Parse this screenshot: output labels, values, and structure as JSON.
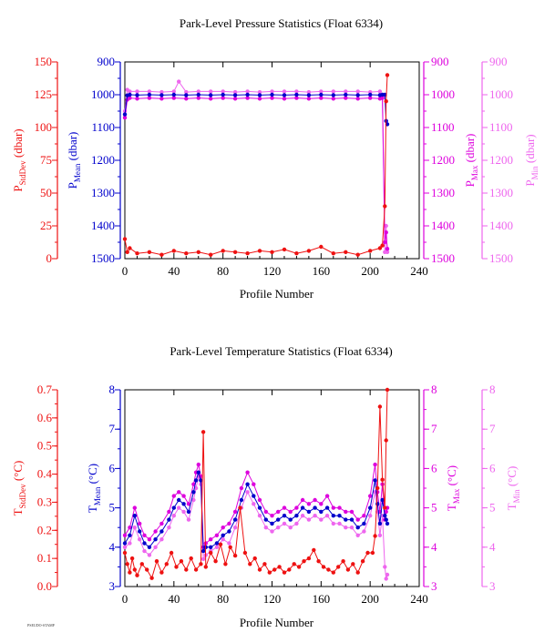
{
  "footer": {
    "stamp": "PSEUDO-STAMP"
  },
  "chart_data": [
    {
      "type": "line",
      "title": "Park-Level Pressure Statistics (Float 6334)",
      "xlabel": "Profile Number",
      "xlim": [
        0,
        240
      ],
      "xticks": [
        0,
        40,
        80,
        120,
        160,
        200,
        240
      ],
      "grid": false,
      "axes": [
        {
          "id": "stddev",
          "label": "P",
          "sub": "StdDev",
          "unit": " (dbar)",
          "color": "#ee1111",
          "range": [
            0,
            150
          ],
          "ticks": [
            0,
            25,
            50,
            75,
            100,
            125,
            150
          ],
          "inverted": false
        },
        {
          "id": "mean",
          "label": "P",
          "sub": "Mean",
          "unit": " (dbar)",
          "color": "#0000cc",
          "range": [
            900,
            1500
          ],
          "ticks": [
            900,
            1000,
            1100,
            1200,
            1300,
            1400,
            1500
          ],
          "inverted": true
        },
        {
          "id": "max",
          "label": "P",
          "sub": "Max",
          "unit": " (dbar)",
          "color": "#dd00dd",
          "range": [
            900,
            1500
          ],
          "ticks": [
            900,
            1000,
            1100,
            1200,
            1300,
            1400,
            1500
          ],
          "inverted": true
        },
        {
          "id": "min",
          "label": "P",
          "sub": "Min",
          "unit": " (dbar)",
          "color": "#ee66ee",
          "range": [
            900,
            1500
          ],
          "ticks": [
            900,
            1000,
            1100,
            1200,
            1300,
            1400,
            1500
          ],
          "inverted": true
        }
      ],
      "series": [
        {
          "axis": "min",
          "x": [
            0,
            2,
            4,
            10,
            20,
            30,
            40,
            44,
            50,
            60,
            70,
            80,
            90,
            100,
            110,
            120,
            130,
            140,
            150,
            160,
            170,
            180,
            190,
            200,
            208,
            210,
            212,
            213,
            214
          ],
          "y": [
            1050,
            985,
            990,
            990,
            990,
            992,
            990,
            960,
            992,
            990,
            990,
            990,
            992,
            990,
            992,
            990,
            990,
            990,
            992,
            990,
            990,
            990,
            990,
            992,
            990,
            1000,
            1480,
            1400,
            1480
          ]
        },
        {
          "axis": "max",
          "x": [
            0,
            2,
            4,
            10,
            20,
            30,
            40,
            50,
            60,
            70,
            80,
            90,
            100,
            110,
            120,
            130,
            140,
            150,
            160,
            170,
            180,
            190,
            200,
            208,
            210,
            212,
            213,
            214
          ],
          "y": [
            1070,
            1015,
            1010,
            1012,
            1010,
            1012,
            1010,
            1012,
            1010,
            1012,
            1010,
            1012,
            1010,
            1012,
            1010,
            1012,
            1010,
            1012,
            1010,
            1012,
            1010,
            1012,
            1010,
            1012,
            1010,
            1450,
            1420,
            1470
          ]
        },
        {
          "axis": "mean",
          "x": [
            0,
            2,
            4,
            10,
            20,
            30,
            40,
            50,
            60,
            70,
            80,
            90,
            100,
            110,
            120,
            130,
            140,
            150,
            160,
            170,
            180,
            190,
            200,
            208,
            210,
            212,
            213,
            214
          ],
          "y": [
            1060,
            1002,
            1000,
            1001,
            1000,
            1001,
            1000,
            1001,
            1000,
            1001,
            1000,
            1001,
            1000,
            1001,
            1000,
            1001,
            1000,
            1001,
            1000,
            1001,
            1000,
            1001,
            1000,
            1001,
            1000,
            1000,
            1080,
            1090
          ]
        },
        {
          "axis": "stddev",
          "x": [
            0,
            2,
            4,
            10,
            20,
            30,
            40,
            50,
            60,
            70,
            80,
            90,
            100,
            110,
            120,
            130,
            140,
            150,
            160,
            170,
            180,
            190,
            200,
            208,
            210,
            212,
            213,
            214
          ],
          "y": [
            15,
            5,
            8,
            4,
            5,
            3,
            6,
            4,
            5,
            3,
            6,
            5,
            4,
            6,
            5,
            7,
            4,
            6,
            9,
            4,
            5,
            3,
            6,
            8,
            10,
            40,
            120,
            140
          ]
        }
      ]
    },
    {
      "type": "line",
      "title": "Park-Level Temperature Statistics (Float 6334)",
      "xlabel": "Profile Number",
      "xlim": [
        0,
        240
      ],
      "xticks": [
        0,
        40,
        80,
        120,
        160,
        200,
        240
      ],
      "grid": false,
      "axes": [
        {
          "id": "stddev",
          "label": "T",
          "sub": "StdDev",
          "unit": " (°C)",
          "color": "#ee1111",
          "range": [
            0,
            0.7
          ],
          "ticks": [
            0.0,
            0.1,
            0.2,
            0.3,
            0.4,
            0.5,
            0.6,
            0.7
          ],
          "inverted": false
        },
        {
          "id": "mean",
          "label": "T",
          "sub": "Mean",
          "unit": " (°C)",
          "color": "#0000cc",
          "range": [
            3,
            8
          ],
          "ticks": [
            3,
            4,
            5,
            6,
            7,
            8
          ],
          "inverted": false
        },
        {
          "id": "max",
          "label": "T",
          "sub": "Max",
          "unit": " (°C)",
          "color": "#dd00dd",
          "range": [
            3,
            8
          ],
          "ticks": [
            3,
            4,
            5,
            6,
            7,
            8
          ],
          "inverted": false
        },
        {
          "id": "min",
          "label": "T",
          "sub": "Min",
          "unit": " (°C)",
          "color": "#ee66ee",
          "range": [
            3,
            8
          ],
          "ticks": [
            3,
            4,
            5,
            6,
            7,
            8
          ],
          "inverted": false
        }
      ],
      "series": [
        {
          "axis": "min",
          "x": [
            0,
            4,
            8,
            12,
            16,
            20,
            25,
            30,
            36,
            40,
            44,
            48,
            52,
            56,
            58,
            60,
            62,
            64,
            66,
            70,
            75,
            80,
            85,
            90,
            95,
            100,
            105,
            110,
            115,
            120,
            125,
            130,
            135,
            140,
            145,
            150,
            155,
            160,
            165,
            170,
            175,
            180,
            185,
            190,
            195,
            200,
            204,
            206,
            208,
            210,
            212,
            213,
            214
          ],
          "y": [
            4.0,
            4.1,
            4.5,
            4.2,
            3.9,
            3.8,
            4.0,
            4.2,
            4.5,
            4.8,
            5.0,
            4.9,
            4.7,
            5.2,
            5.5,
            5.8,
            5.6,
            3.7,
            3.8,
            3.9,
            4.0,
            4.2,
            4.1,
            4.5,
            5.0,
            5.4,
            5.1,
            4.8,
            4.5,
            4.4,
            4.5,
            4.6,
            4.5,
            4.6,
            4.8,
            4.7,
            4.8,
            4.7,
            4.8,
            4.6,
            4.6,
            4.5,
            4.5,
            4.3,
            4.4,
            4.8,
            5.4,
            4.9,
            4.3,
            4.8,
            3.5,
            3.2,
            3.3
          ]
        },
        {
          "axis": "max",
          "x": [
            0,
            4,
            8,
            12,
            16,
            20,
            25,
            30,
            36,
            40,
            44,
            48,
            52,
            56,
            58,
            60,
            62,
            64,
            66,
            70,
            75,
            80,
            85,
            90,
            95,
            100,
            105,
            110,
            115,
            120,
            125,
            130,
            135,
            140,
            145,
            150,
            155,
            160,
            165,
            170,
            175,
            180,
            185,
            190,
            195,
            200,
            204,
            206,
            208,
            210,
            212,
            213,
            214
          ],
          "y": [
            4.3,
            4.5,
            5.0,
            4.6,
            4.3,
            4.2,
            4.4,
            4.6,
            4.9,
            5.3,
            5.4,
            5.3,
            5.1,
            5.6,
            5.9,
            6.1,
            5.8,
            4.0,
            4.1,
            4.2,
            4.3,
            4.5,
            4.6,
            4.9,
            5.5,
            5.9,
            5.6,
            5.2,
            4.9,
            4.8,
            4.9,
            5.0,
            4.9,
            5.0,
            5.2,
            5.1,
            5.2,
            5.1,
            5.3,
            5.0,
            5.0,
            4.9,
            4.9,
            4.7,
            4.8,
            5.3,
            6.1,
            5.4,
            4.9,
            5.6,
            4.7,
            4.9,
            5.0
          ]
        },
        {
          "axis": "mean",
          "x": [
            0,
            4,
            8,
            12,
            16,
            20,
            25,
            30,
            36,
            40,
            44,
            48,
            52,
            56,
            58,
            60,
            62,
            64,
            66,
            70,
            75,
            80,
            85,
            90,
            95,
            100,
            105,
            110,
            115,
            120,
            125,
            130,
            135,
            140,
            145,
            150,
            155,
            160,
            165,
            170,
            175,
            180,
            185,
            190,
            195,
            200,
            204,
            206,
            208,
            210,
            212,
            213,
            214
          ],
          "y": [
            4.1,
            4.3,
            4.8,
            4.4,
            4.1,
            4.0,
            4.2,
            4.4,
            4.7,
            5.0,
            5.2,
            5.1,
            4.9,
            5.4,
            5.7,
            5.9,
            5.7,
            3.9,
            4.0,
            4.0,
            4.1,
            4.3,
            4.4,
            4.7,
            5.2,
            5.6,
            5.3,
            5.0,
            4.7,
            4.6,
            4.7,
            4.8,
            4.7,
            4.8,
            5.0,
            4.9,
            5.0,
            4.9,
            5.0,
            4.8,
            4.8,
            4.7,
            4.7,
            4.5,
            4.6,
            5.0,
            5.7,
            5.1,
            4.6,
            5.2,
            4.8,
            4.7,
            4.6
          ]
        },
        {
          "axis": "stddev",
          "x": [
            0,
            2,
            4,
            6,
            8,
            10,
            14,
            18,
            22,
            26,
            30,
            34,
            38,
            42,
            46,
            50,
            54,
            58,
            62,
            64,
            66,
            70,
            74,
            78,
            82,
            86,
            90,
            94,
            98,
            102,
            106,
            110,
            114,
            118,
            122,
            126,
            130,
            134,
            138,
            142,
            146,
            150,
            154,
            158,
            162,
            166,
            170,
            174,
            178,
            182,
            186,
            190,
            194,
            198,
            202,
            204,
            206,
            208,
            210,
            212,
            213,
            214
          ],
          "y": [
            0.12,
            0.08,
            0.05,
            0.1,
            0.06,
            0.04,
            0.08,
            0.06,
            0.03,
            0.09,
            0.05,
            0.08,
            0.12,
            0.07,
            0.09,
            0.06,
            0.1,
            0.06,
            0.08,
            0.55,
            0.07,
            0.12,
            0.09,
            0.15,
            0.08,
            0.14,
            0.11,
            0.28,
            0.12,
            0.08,
            0.1,
            0.06,
            0.08,
            0.05,
            0.06,
            0.07,
            0.05,
            0.06,
            0.08,
            0.07,
            0.09,
            0.1,
            0.13,
            0.09,
            0.07,
            0.06,
            0.05,
            0.07,
            0.09,
            0.06,
            0.08,
            0.05,
            0.09,
            0.12,
            0.12,
            0.18,
            0.35,
            0.64,
            0.38,
            0.28,
            0.52,
            0.7
          ]
        }
      ]
    }
  ]
}
